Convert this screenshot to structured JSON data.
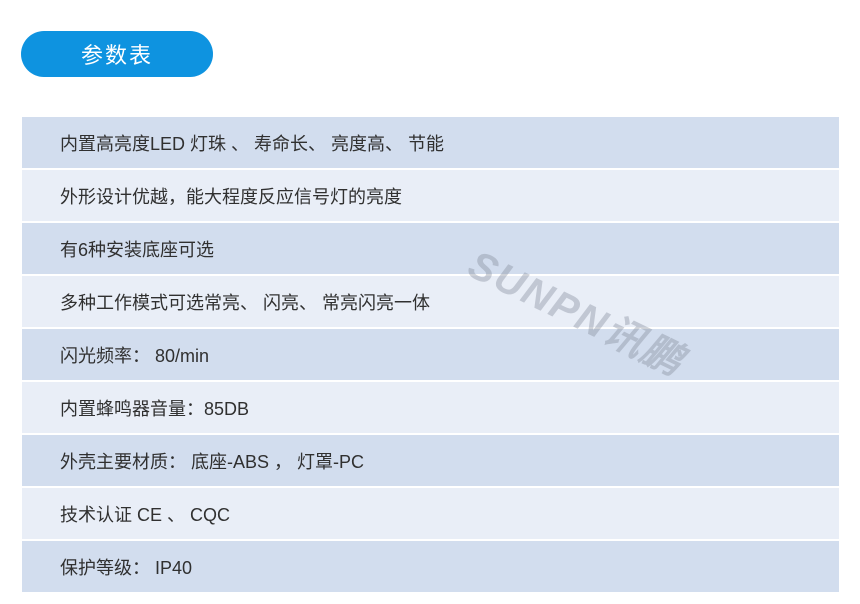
{
  "colors": {
    "badge_blue": "#0e93e0",
    "row_odd": "#d2ddee",
    "row_even": "#e9eef7",
    "row_text": "#303030"
  },
  "header": {
    "badge_label": "参数表"
  },
  "watermark": {
    "text": "SUNPN讯鹏"
  },
  "table": {
    "rows": [
      "内置高亮度LED 灯珠 、 寿命长、 亮度高、 节能",
      "外形设计优越，能大程度反应信号灯的亮度",
      "有6种安装底座可选",
      "多种工作模式可选常亮、 闪亮、 常亮闪亮一体",
      "闪光频率： 80/min",
      "内置蜂鸣器音量：85DB",
      "外壳主要材质： 底座-ABS ， 灯罩-PC",
      "技术认证 CE 、 CQC",
      "保护等级： IP40"
    ]
  }
}
